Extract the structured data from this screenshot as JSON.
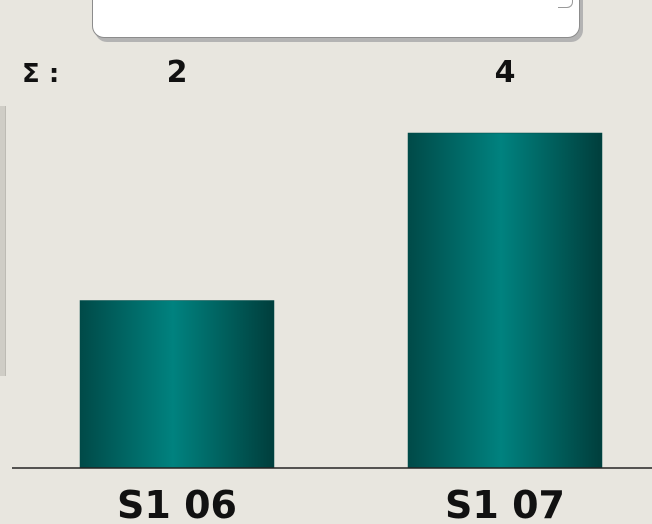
{
  "chart_data": {
    "type": "bar",
    "categories": [
      "S1 06",
      "S1 07"
    ],
    "values": [
      2,
      4
    ],
    "sum_label": "Σ :",
    "ylim": [
      0,
      4.5
    ],
    "grid": false,
    "bar_color": "#007a78",
    "bar_edge_color": "#004a48",
    "baseline_color": "#222222"
  }
}
